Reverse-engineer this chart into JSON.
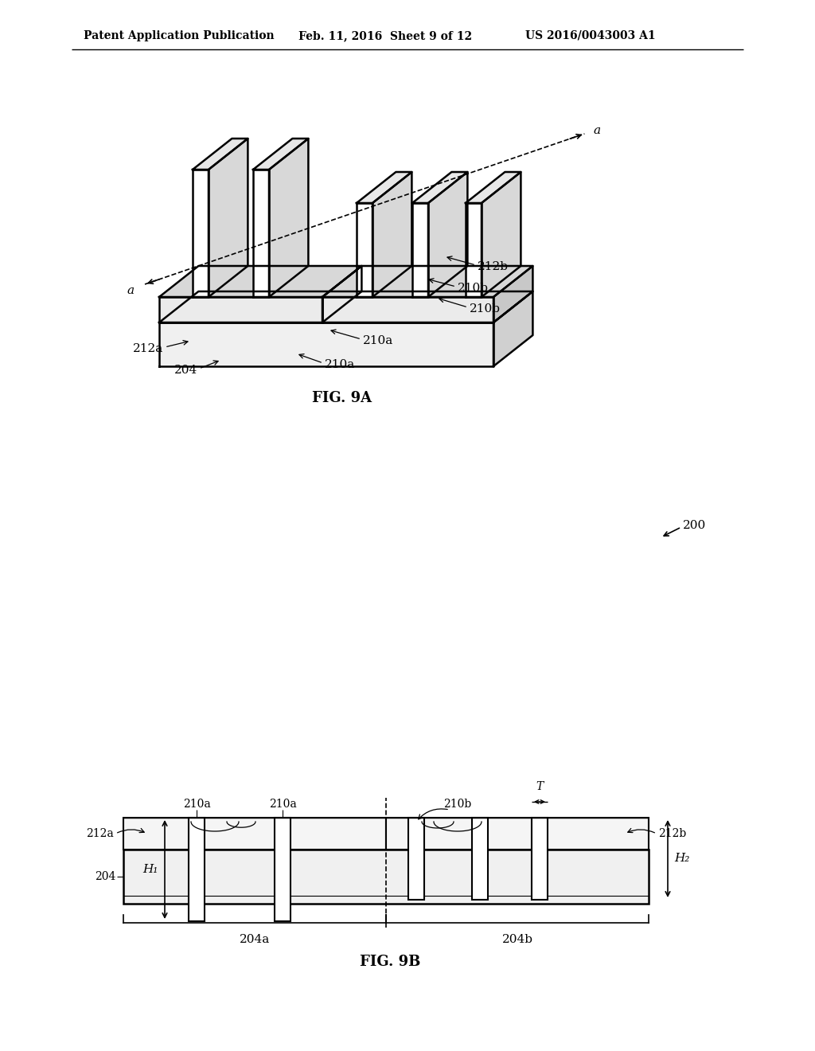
{
  "bg_color": "#ffffff",
  "line_color": "#000000",
  "header_left": "Patent Application Publication",
  "header_center": "Feb. 11, 2016  Sheet 9 of 12",
  "header_right": "US 2016/0043003 A1",
  "fig9a_label": "FIG. 9A",
  "fig9b_label": "FIG. 9B",
  "label_200": "200",
  "label_204": "204",
  "label_204a": "204a",
  "label_204b": "204b",
  "label_210a": "210a",
  "label_210b": "210b",
  "label_212a": "212a",
  "label_212b": "212b",
  "label_H1": "H₁",
  "label_H2": "H₂",
  "label_T": "T",
  "label_a": "a"
}
